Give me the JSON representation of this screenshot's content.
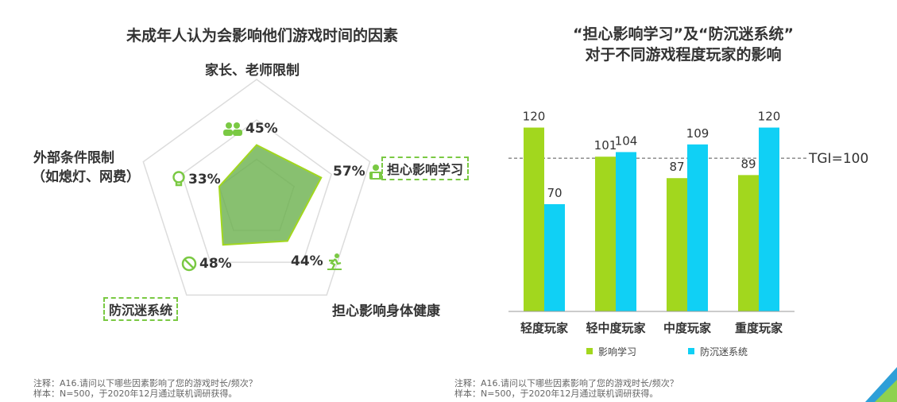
{
  "colors": {
    "green": "#a2d71e",
    "cyan": "#10d0f5",
    "radar_fill": "#6ab04c",
    "radar_stroke": "#a2d71e",
    "accent_dash": "#7ac943"
  },
  "chart_data": [
    {
      "type": "radar",
      "title": "未成年人认为会影响他们游戏时间的因素",
      "axes": [
        {
          "label": "家长、老师限制",
          "value": 45,
          "display": "45%",
          "icon": "parents-icon"
        },
        {
          "label": "担心影响学习",
          "value": 57,
          "display": "57%",
          "icon": "study-icon"
        },
        {
          "label": "担心影响身体健康",
          "value": 44,
          "display": "44%",
          "icon": "exercise-icon"
        },
        {
          "label": "防沉迷系统",
          "value": 48,
          "display": "48%",
          "icon": "ban-icon"
        },
        {
          "label_line1": "外部条件限制",
          "label_line2": "（如熄灯、网费）",
          "value": 33,
          "display": "33%",
          "icon": "lightbulb-icon"
        }
      ]
    },
    {
      "type": "bar",
      "title_line1": "“担心影响学习”及“防沉迷系统”",
      "title_line2": "对于不同游戏程度玩家的影响",
      "categories": [
        "轻度玩家",
        "轻中度玩家",
        "中度玩家",
        "重度玩家"
      ],
      "series": [
        {
          "name": "影响学习",
          "values": [
            120,
            101,
            87,
            89
          ]
        },
        {
          "name": "防沉迷系统",
          "values": [
            70,
            104,
            109,
            120
          ]
        }
      ],
      "reference_line": {
        "value": 100,
        "label": "TGI=100"
      },
      "ylim": [
        0,
        140
      ]
    }
  ],
  "notes": {
    "left": {
      "line1": "注释：A16.请问以下哪些因素影响了您的游戏时长/频次？",
      "line2": "样本：N=500，于2020年12月通过联机调研获得。"
    },
    "right": {
      "line1": "注释：A16.请问以下哪些因素影响了您的游戏时长/频次？",
      "line2": "样本：N=500，于2020年12月通过联机调研获得。"
    }
  }
}
